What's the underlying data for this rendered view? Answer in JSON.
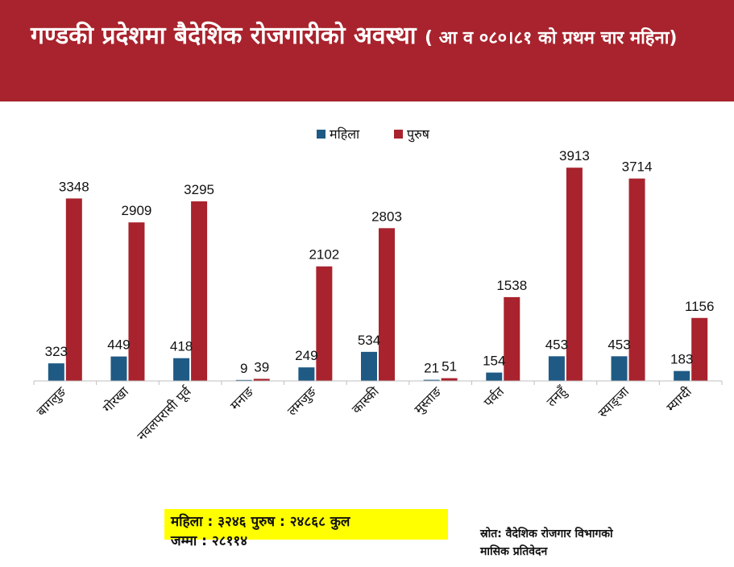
{
  "header": {
    "title": "गण्डकी प्रदेशमा बैदेशिक रोजगारीको अवस्था",
    "subtitle": "( आ व ०८०।८१ को प्रथम चार महिना)"
  },
  "summary": {
    "line1": "महिला : ३२४६ पुरुष : २४८६८ कुल",
    "line2": "जम्मा : २८११४"
  },
  "source": {
    "line1": "स्रोत: वैदेशिक रोजगार विभागको",
    "line2": "मासिक प्रतिवेदन"
  },
  "colors": {
    "banner": "#a8232d",
    "female": "#1f5a85",
    "male": "#a8232d"
  },
  "chart_data": {
    "type": "bar",
    "categories": [
      "बागलुङ",
      "गोरखा",
      "नवलपरासी पूर्व",
      "मनाङ",
      "लमजुङ",
      "कास्की",
      "मुस्ताङ",
      "पर्वत",
      "तनहुँ",
      "स्याङ्जा",
      "म्याग्दी"
    ],
    "series": [
      {
        "name": "महिला",
        "color": "#1f5a85",
        "values": [
          323,
          449,
          418,
          9,
          249,
          534,
          21,
          154,
          453,
          453,
          183
        ]
      },
      {
        "name": "पुरुष",
        "color": "#a8232d",
        "values": [
          3348,
          2909,
          3295,
          39,
          2102,
          2803,
          51,
          1538,
          3913,
          3714,
          1156
        ]
      }
    ],
    "ylim": [
      0,
      4300
    ],
    "legend_position": "top-center",
    "grid": false
  }
}
